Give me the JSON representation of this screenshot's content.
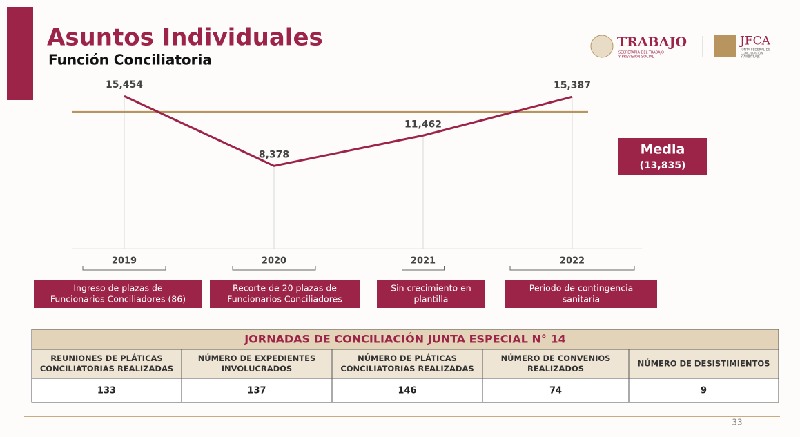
{
  "header": {
    "title": "Asuntos Individuales",
    "subtitle": "Función Conciliatoria",
    "logo1": {
      "name": "TRABAJO",
      "sub": [
        "SECRETARÍA DEL TRABAJO",
        "Y PREVISIÓN SOCIAL"
      ]
    },
    "logo2": {
      "name": "JFCA",
      "sub": [
        "JUNTA FEDERAL DE",
        "CONCILIACIÓN",
        "Y ARBITRAJE"
      ]
    }
  },
  "chart_data": {
    "type": "line",
    "categories": [
      "2019",
      "2020",
      "2021",
      "2022"
    ],
    "values": [
      15454,
      8378,
      11462,
      15387
    ],
    "value_labels": [
      "15,454",
      "8,378",
      "11,462",
      "15,387"
    ],
    "color": "#9d2449",
    "ylim": [
      0,
      17500
    ],
    "mean": {
      "label": "Media",
      "value": 13835,
      "value_label": "(13,835)",
      "color": "#b8955f"
    },
    "annotations": [
      [
        "Ingreso de plazas de",
        "Funcionarios Conciliadores (86)"
      ],
      [
        "Recorte de 20 plazas de",
        "Funcionarios Conciliadores"
      ],
      [
        "Sin crecimiento en",
        "plantilla"
      ],
      [
        "Periodo de contingencia",
        "sanitaria"
      ]
    ]
  },
  "table": {
    "title": "JORNADAS DE CONCILIACIÓN JUNTA ESPECIAL N° 14",
    "headers": [
      [
        "REUNIONES DE PLÁTICAS",
        "CONCILIATORIAS REALIZADAS"
      ],
      [
        "NÚMERO DE EXPEDIENTES",
        "INVOLUCRADOS"
      ],
      [
        "NÚMERO DE PLÁTICAS",
        "CONCILIATORIAS REALIZADAS"
      ],
      [
        "NÚMERO DE CONVENIOS",
        "REALIZADOS"
      ],
      [
        "NÚMERO DE DESISTIMIENTOS"
      ]
    ],
    "rows": [
      [
        133,
        137,
        146,
        74,
        9
      ]
    ]
  },
  "page_number": "33"
}
